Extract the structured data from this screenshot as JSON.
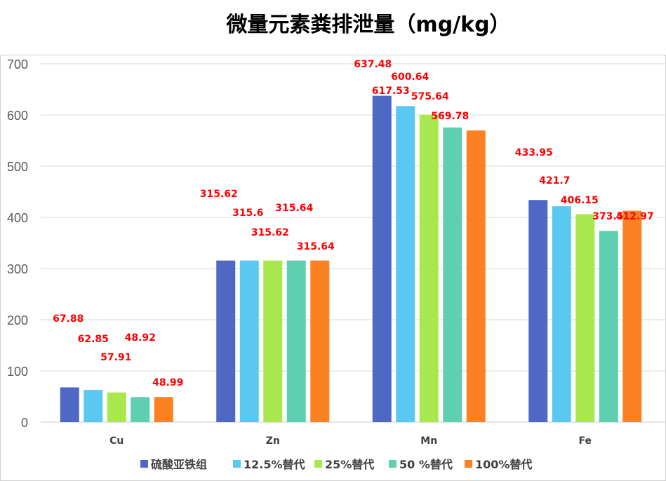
{
  "chart_data": {
    "type": "bar",
    "title": "微量元素粪排泄量（mg/kg）",
    "xlabel": "",
    "ylabel": "",
    "categories": [
      "Cu",
      "Zn",
      "Mn",
      "Fe"
    ],
    "ylim": [
      0,
      700
    ],
    "yticks": [
      0,
      100,
      200,
      300,
      400,
      500,
      600,
      700
    ],
    "grid": true,
    "legend_position": "bottom",
    "data_label_color": "#ff0000",
    "series": [
      {
        "name": "硫酸亚铁组",
        "color": "#4f68c6",
        "values": [
          67.88,
          315.62,
          637.48,
          433.95
        ]
      },
      {
        "name": "12.5%替代",
        "color": "#5bc8f2",
        "values": [
          62.85,
          315.6,
          617.53,
          421.7
        ]
      },
      {
        "name": "25%替代",
        "color": "#a8e84e",
        "values": [
          57.91,
          315.62,
          600.64,
          406.15
        ]
      },
      {
        "name": "50 %替代",
        "color": "#5ecfb1",
        "values": [
          48.92,
          315.64,
          575.64,
          373.5
        ]
      },
      {
        "name": "100%替代",
        "color": "#fb8122",
        "values": [
          48.99,
          315.64,
          569.78,
          412.97
        ]
      }
    ]
  }
}
